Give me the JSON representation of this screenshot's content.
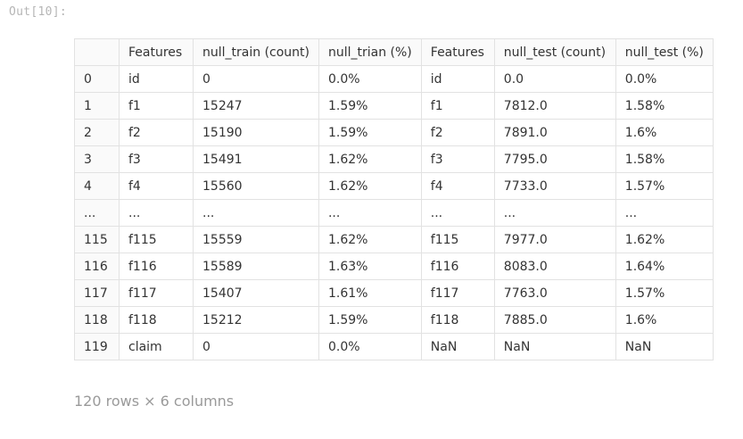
{
  "cell": {
    "out_prompt": "Out[10]:"
  },
  "table": {
    "columns": [
      "",
      "Features",
      "null_train (count)",
      "null_trian (%)",
      "Features",
      "null_test (count)",
      "null_test (%)"
    ],
    "rows": [
      [
        "0",
        "id",
        "0",
        "0.0%",
        "id",
        "0.0",
        "0.0%"
      ],
      [
        "1",
        "f1",
        "15247",
        "1.59%",
        "f1",
        "7812.0",
        "1.58%"
      ],
      [
        "2",
        "f2",
        "15190",
        "1.59%",
        "f2",
        "7891.0",
        "1.6%"
      ],
      [
        "3",
        "f3",
        "15491",
        "1.62%",
        "f3",
        "7795.0",
        "1.58%"
      ],
      [
        "4",
        "f4",
        "15560",
        "1.62%",
        "f4",
        "7733.0",
        "1.57%"
      ],
      [
        "...",
        "...",
        "...",
        "...",
        "...",
        "...",
        "..."
      ],
      [
        "115",
        "f115",
        "15559",
        "1.62%",
        "f115",
        "7977.0",
        "1.62%"
      ],
      [
        "116",
        "f116",
        "15589",
        "1.63%",
        "f116",
        "8083.0",
        "1.64%"
      ],
      [
        "117",
        "f117",
        "15407",
        "1.61%",
        "f117",
        "7763.0",
        "1.57%"
      ],
      [
        "118",
        "f118",
        "15212",
        "1.59%",
        "f118",
        "7885.0",
        "1.6%"
      ],
      [
        "119",
        "claim",
        "0",
        "0.0%",
        "NaN",
        "NaN",
        "NaN"
      ]
    ]
  },
  "footer": {
    "shape_text": "120 rows × 6 columns"
  }
}
